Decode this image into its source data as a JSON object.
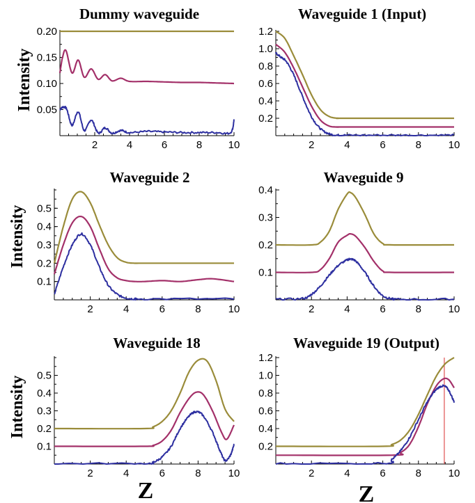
{
  "colors": {
    "olive": "#9A8C3A",
    "magenta": "#A33069",
    "blue": "#2D2FA0",
    "marker": "#E05050"
  },
  "y_label": "Intensity",
  "x_label": "Z",
  "chart_data": [
    {
      "type": "line",
      "title": "Dummy waveguide",
      "xlabel": "",
      "ylabel": "Intensity",
      "xlim": [
        0,
        10
      ],
      "ylim": [
        0,
        0.2
      ],
      "xticks": [
        "2",
        "4",
        "6",
        "8",
        "10"
      ],
      "xtick_vals": [
        2,
        4,
        6,
        8,
        10
      ],
      "yticks": [
        "0.05",
        "0.10",
        "0.15",
        "0.20"
      ],
      "ytick_vals": [
        0.05,
        0.1,
        0.15,
        0.2
      ],
      "series": [
        {
          "color": "olive",
          "x": [
            0,
            10
          ],
          "y": [
            0.2,
            0.2
          ]
        },
        {
          "color": "magenta",
          "x": [
            0,
            0.15,
            0.35,
            0.7,
            1.05,
            1.4,
            1.8,
            2.2,
            2.6,
            3.0,
            3.5,
            4,
            5,
            6,
            7,
            8,
            9,
            10
          ],
          "y": [
            0.12,
            0.15,
            0.163,
            0.12,
            0.145,
            0.112,
            0.128,
            0.108,
            0.117,
            0.105,
            0.11,
            0.104,
            0.104,
            0.103,
            0.102,
            0.102,
            0.101,
            0.1
          ]
        },
        {
          "color": "blue",
          "noisy": true,
          "x": [
            0,
            0.2,
            0.4,
            0.7,
            1.05,
            1.4,
            1.8,
            2.2,
            2.6,
            3.0,
            3.5,
            4,
            5,
            6,
            7,
            8,
            9,
            9.8,
            10
          ],
          "y": [
            0.05,
            0.055,
            0.05,
            0.02,
            0.046,
            0.01,
            0.03,
            0.005,
            0.015,
            0.005,
            0.01,
            0.006,
            0.008,
            0.007,
            0.006,
            0.006,
            0.006,
            0.006,
            0.03
          ]
        }
      ]
    },
    {
      "type": "line",
      "title": "Waveguide 1 (Input)",
      "xlabel": "",
      "ylabel": "",
      "xlim": [
        0,
        10
      ],
      "ylim": [
        0,
        1.2
      ],
      "xticks": [
        "2",
        "4",
        "6",
        "8",
        "10"
      ],
      "xtick_vals": [
        2,
        4,
        6,
        8,
        10
      ],
      "yticks": [
        "0.2",
        "0.4",
        "0.6",
        "0.8",
        "1.0",
        "1.2"
      ],
      "ytick_vals": [
        0.2,
        0.4,
        0.6,
        0.8,
        1.0,
        1.2
      ],
      "series": [
        {
          "color": "olive",
          "x": [
            0,
            0.5,
            1,
            1.5,
            2,
            2.5,
            3,
            3.5,
            4,
            10
          ],
          "y": [
            1.2,
            1.12,
            0.92,
            0.7,
            0.47,
            0.3,
            0.22,
            0.2,
            0.2,
            0.2
          ]
        },
        {
          "color": "magenta",
          "x": [
            0,
            0.5,
            1,
            1.5,
            2,
            2.5,
            3,
            3.5,
            4,
            10
          ],
          "y": [
            1.05,
            0.96,
            0.78,
            0.56,
            0.34,
            0.18,
            0.11,
            0.1,
            0.1,
            0.1
          ]
        },
        {
          "color": "blue",
          "noisy": true,
          "x": [
            0,
            0.3,
            0.6,
            1,
            1.5,
            2,
            2.5,
            3,
            3.5,
            4,
            6,
            8,
            10
          ],
          "y": [
            0.95,
            0.9,
            0.85,
            0.7,
            0.45,
            0.22,
            0.08,
            0.02,
            0.005,
            0.005,
            0.005,
            0.005,
            0.005
          ]
        }
      ]
    },
    {
      "type": "line",
      "title": "Waveguide 2",
      "xlabel": "",
      "ylabel": "Intensity",
      "xlim": [
        0,
        10
      ],
      "ylim": [
        0,
        0.6
      ],
      "xticks": [
        "2",
        "4",
        "6",
        "8",
        "10"
      ],
      "xtick_vals": [
        2,
        4,
        6,
        8,
        10
      ],
      "yticks": [
        "0.1",
        "0.2",
        "0.3",
        "0.4",
        "0.5"
      ],
      "ytick_vals": [
        0.1,
        0.2,
        0.3,
        0.4,
        0.5
      ],
      "series": [
        {
          "color": "olive",
          "x": [
            0,
            0.5,
            1,
            1.5,
            2,
            2.5,
            3,
            3.5,
            4,
            4.5,
            5,
            10
          ],
          "y": [
            0.2,
            0.4,
            0.55,
            0.59,
            0.53,
            0.41,
            0.3,
            0.23,
            0.205,
            0.2,
            0.2,
            0.2
          ]
        },
        {
          "color": "magenta",
          "x": [
            0,
            0.5,
            1,
            1.5,
            2,
            2.5,
            3,
            3.5,
            4,
            4.5,
            5,
            6,
            7,
            8,
            8.8,
            10
          ],
          "y": [
            0.14,
            0.3,
            0.42,
            0.455,
            0.4,
            0.28,
            0.17,
            0.12,
            0.105,
            0.1,
            0.1,
            0.105,
            0.1,
            0.11,
            0.115,
            0.1
          ]
        },
        {
          "color": "blue",
          "noisy": true,
          "x": [
            0,
            0.5,
            1,
            1.5,
            2,
            2.5,
            3,
            3.5,
            4,
            4.5,
            5,
            10
          ],
          "y": [
            0.03,
            0.18,
            0.3,
            0.36,
            0.3,
            0.18,
            0.08,
            0.03,
            0.01,
            0.005,
            0.005,
            0.005
          ]
        }
      ]
    },
    {
      "type": "line",
      "title": "Waveguide 9",
      "xlabel": "",
      "ylabel": "",
      "xlim": [
        0,
        10
      ],
      "ylim": [
        0,
        0.4
      ],
      "xticks": [
        "2",
        "4",
        "6",
        "8",
        "10"
      ],
      "xtick_vals": [
        2,
        4,
        6,
        8,
        10
      ],
      "yticks": [
        "0.1",
        "0.2",
        "0.3",
        "0.4"
      ],
      "ytick_vals": [
        0.1,
        0.2,
        0.3,
        0.4
      ],
      "series": [
        {
          "color": "olive",
          "x": [
            0,
            2,
            2.5,
            3,
            3.5,
            4,
            4.2,
            4.5,
            5,
            5.5,
            6,
            6.5,
            10
          ],
          "y": [
            0.2,
            0.2,
            0.21,
            0.25,
            0.33,
            0.385,
            0.39,
            0.37,
            0.31,
            0.24,
            0.205,
            0.2,
            0.2
          ]
        },
        {
          "color": "magenta",
          "x": [
            0,
            2,
            2.5,
            3,
            3.5,
            4,
            4.2,
            4.5,
            5,
            5.5,
            6,
            6.5,
            10
          ],
          "y": [
            0.1,
            0.1,
            0.11,
            0.15,
            0.21,
            0.235,
            0.24,
            0.23,
            0.19,
            0.14,
            0.105,
            0.1,
            0.1
          ]
        },
        {
          "color": "blue",
          "noisy": true,
          "x": [
            0,
            1.5,
            2,
            2.5,
            3,
            3.5,
            4,
            4.2,
            4.5,
            5,
            5.5,
            6,
            6.5,
            7,
            10
          ],
          "y": [
            0.002,
            0.005,
            0.02,
            0.05,
            0.09,
            0.125,
            0.145,
            0.148,
            0.14,
            0.1,
            0.05,
            0.015,
            0.004,
            0.002,
            0.002
          ]
        }
      ]
    },
    {
      "type": "line",
      "title": "Waveguide 18",
      "xlabel": "Z",
      "ylabel": "Intensity",
      "xlim": [
        0,
        10
      ],
      "ylim": [
        0,
        0.6
      ],
      "xticks": [
        "2",
        "4",
        "6",
        "8",
        "10"
      ],
      "xtick_vals": [
        2,
        4,
        6,
        8,
        10
      ],
      "yticks": [
        "0.1",
        "0.2",
        "0.3",
        "0.4",
        "0.5"
      ],
      "ytick_vals": [
        0.1,
        0.2,
        0.3,
        0.4,
        0.5
      ],
      "series": [
        {
          "color": "olive",
          "x": [
            0,
            5,
            5.5,
            6,
            6.5,
            7,
            7.5,
            8,
            8.5,
            9,
            9.5,
            10
          ],
          "y": [
            0.2,
            0.2,
            0.21,
            0.24,
            0.3,
            0.4,
            0.52,
            0.585,
            0.58,
            0.47,
            0.31,
            0.24
          ]
        },
        {
          "color": "magenta",
          "x": [
            0,
            5,
            5.5,
            6,
            6.5,
            7,
            7.5,
            7.9,
            8.3,
            8.8,
            9.3,
            9.6,
            10
          ],
          "y": [
            0.1,
            0.1,
            0.105,
            0.13,
            0.19,
            0.29,
            0.37,
            0.405,
            0.39,
            0.3,
            0.18,
            0.14,
            0.22
          ]
        },
        {
          "color": "blue",
          "noisy": true,
          "x": [
            0,
            5,
            5.5,
            6,
            6.5,
            7,
            7.5,
            7.9,
            8.3,
            8.8,
            9.2,
            9.5,
            9.8,
            10
          ],
          "y": [
            0.002,
            0.003,
            0.01,
            0.04,
            0.1,
            0.2,
            0.27,
            0.295,
            0.27,
            0.18,
            0.08,
            0.02,
            0.05,
            0.11
          ]
        }
      ]
    },
    {
      "type": "line",
      "title": "Waveguide 19 (Output)",
      "xlabel": "Z",
      "ylabel": "",
      "xlim": [
        0,
        10
      ],
      "ylim": [
        0,
        1.2
      ],
      "xticks": [
        "2",
        "4",
        "6",
        "8",
        "10"
      ],
      "xtick_vals": [
        2,
        4,
        6,
        8,
        10
      ],
      "yticks": [
        "0.2",
        "0.4",
        "0.6",
        "0.8",
        "1.0",
        "1.2"
      ],
      "ytick_vals": [
        0.2,
        0.4,
        0.6,
        0.8,
        1.0,
        1.2
      ],
      "vline_x": 9.45,
      "series": [
        {
          "color": "olive",
          "x": [
            0,
            6,
            6.5,
            7,
            7.5,
            8,
            8.5,
            9,
            9.5,
            10
          ],
          "y": [
            0.2,
            0.2,
            0.22,
            0.27,
            0.38,
            0.56,
            0.78,
            0.99,
            1.13,
            1.2
          ]
        },
        {
          "color": "magenta",
          "x": [
            0,
            6.5,
            7,
            7.5,
            8,
            8.5,
            9,
            9.4,
            9.7,
            10
          ],
          "y": [
            0.1,
            0.1,
            0.13,
            0.22,
            0.42,
            0.68,
            0.88,
            0.96,
            0.95,
            0.86
          ]
        },
        {
          "color": "blue",
          "noisy": true,
          "x": [
            0,
            6,
            6.5,
            7,
            7.5,
            8,
            8.5,
            9,
            9.4,
            9.7,
            10
          ],
          "y": [
            0.005,
            0.01,
            0.05,
            0.15,
            0.3,
            0.5,
            0.7,
            0.84,
            0.88,
            0.83,
            0.7
          ]
        }
      ]
    }
  ]
}
